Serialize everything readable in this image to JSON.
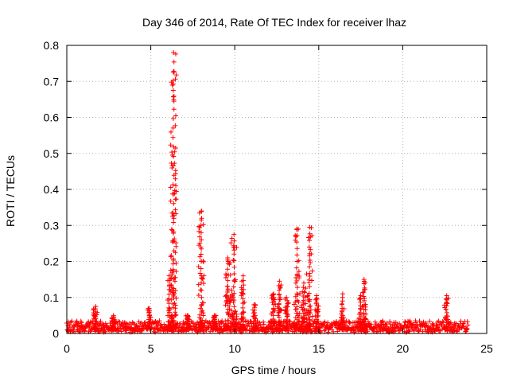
{
  "chart_data": {
    "type": "scatter",
    "title": "Day 346 of 2014, Rate Of TEC Index for receiver lhaz",
    "xlabel": "GPS time / hours",
    "ylabel": "ROTI / TECUs",
    "xlim": [
      0,
      25
    ],
    "ylim": [
      0,
      0.8
    ],
    "x_ticks": [
      0,
      5,
      10,
      15,
      20,
      25
    ],
    "x_tick_labels": [
      "0",
      "5",
      "10",
      "15",
      "20",
      "25"
    ],
    "y_ticks": [
      0,
      0.1,
      0.2,
      0.3,
      0.4,
      0.5,
      0.6,
      0.7,
      0.8
    ],
    "y_tick_labels": [
      "0",
      "0.1",
      "0.2",
      "0.3",
      "0.4",
      "0.5",
      "0.6",
      "0.7",
      "0.8"
    ],
    "grid": true,
    "marker": "plus",
    "color": "#ff0000",
    "x_range": [
      0,
      23.9
    ],
    "baseline": 0.015,
    "baseline_max": 0.035,
    "spikes": [
      {
        "x": 1.7,
        "peak": 0.075
      },
      {
        "x": 2.8,
        "peak": 0.05
      },
      {
        "x": 4.9,
        "peak": 0.07
      },
      {
        "x": 6.1,
        "peak": 0.16
      },
      {
        "x": 6.35,
        "peak": 0.78
      },
      {
        "x": 7.2,
        "peak": 0.05
      },
      {
        "x": 8.0,
        "peak": 0.34
      },
      {
        "x": 8.8,
        "peak": 0.05
      },
      {
        "x": 9.6,
        "peak": 0.21
      },
      {
        "x": 9.95,
        "peak": 0.275
      },
      {
        "x": 10.5,
        "peak": 0.16
      },
      {
        "x": 11.2,
        "peak": 0.08
      },
      {
        "x": 12.3,
        "peak": 0.11
      },
      {
        "x": 12.65,
        "peak": 0.145
      },
      {
        "x": 13.1,
        "peak": 0.1
      },
      {
        "x": 13.7,
        "peak": 0.29
      },
      {
        "x": 14.1,
        "peak": 0.14
      },
      {
        "x": 14.45,
        "peak": 0.295
      },
      {
        "x": 14.9,
        "peak": 0.105
      },
      {
        "x": 16.4,
        "peak": 0.11
      },
      {
        "x": 17.5,
        "peak": 0.105
      },
      {
        "x": 17.7,
        "peak": 0.15
      },
      {
        "x": 22.6,
        "peak": 0.105
      }
    ]
  }
}
